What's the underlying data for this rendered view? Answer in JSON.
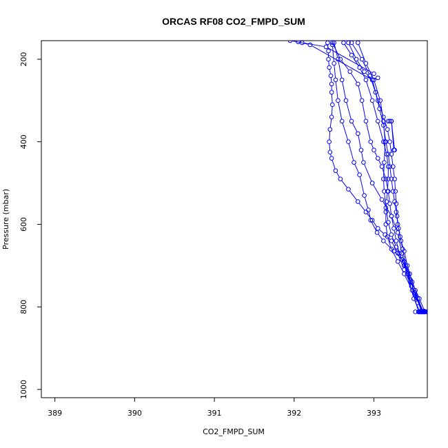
{
  "chart_data": {
    "type": "line",
    "title": "ORCAS RF08 CO2_FMPD_SUM",
    "xlabel": "CO2_FMPD_SUM",
    "ylabel": "Pressure (mbar)",
    "xlim": [
      388.83,
      393.67
    ],
    "ylim": [
      1020,
      155
    ],
    "y_inverted": true,
    "x_ticks": [
      389,
      390,
      391,
      392,
      393
    ],
    "y_ticks": [
      200,
      400,
      600,
      800,
      1000
    ],
    "grid": false,
    "series_color": "#0000ff",
    "series": [
      {
        "x": [
          393.63,
          393.55,
          393.47,
          393.38,
          393.3,
          393.22,
          393.14,
          393.05,
          392.98,
          392.9,
          392.8,
          392.68,
          392.58,
          392.52,
          392.47,
          392.45,
          392.44,
          392.45,
          392.47,
          392.48,
          392.47,
          392.47,
          392.46,
          392.44,
          392.43,
          392.43,
          392.42
        ],
        "y": [
          812,
          790,
          750,
          710,
          670,
          640,
          625,
          610,
          590,
          570,
          545,
          515,
          490,
          470,
          440,
          425,
          400,
          370,
          340,
          310,
          280,
          260,
          240,
          220,
          200,
          180,
          160
        ]
      },
      {
        "x": [
          393.6,
          393.52,
          393.45,
          393.38,
          393.25,
          393.12,
          393.04,
          392.96,
          392.93,
          392.88,
          392.82,
          392.75,
          392.68,
          392.6,
          392.55,
          392.52,
          392.5,
          392.48
        ],
        "y": [
          812,
          760,
          720,
          690,
          665,
          640,
          620,
          590,
          565,
          530,
          480,
          450,
          400,
          350,
          300,
          250,
          210,
          165
        ]
      },
      {
        "x": [
          393.58,
          393.5,
          393.42,
          393.35,
          393.3,
          393.22,
          393.1,
          392.98,
          392.87,
          392.84,
          392.8,
          392.72,
          392.65,
          392.6,
          392.55,
          392.5
        ],
        "y": [
          812,
          780,
          720,
          670,
          620,
          580,
          540,
          500,
          450,
          420,
          380,
          350,
          300,
          250,
          200,
          160
        ]
      },
      {
        "x": [
          393.62,
          393.55,
          393.46,
          393.38,
          393.32,
          393.28,
          393.25,
          393.22,
          393.2,
          393.18,
          393.15,
          393.1,
          393.05,
          393.0,
          392.96,
          392.9,
          392.85,
          392.8,
          392.7,
          392.58,
          392.48
        ],
        "y": [
          812,
          780,
          740,
          700,
          670,
          640,
          610,
          580,
          550,
          520,
          490,
          460,
          440,
          420,
          400,
          350,
          300,
          260,
          230,
          200,
          160
        ]
      },
      {
        "x": [
          393.64,
          393.57,
          393.48,
          393.42,
          393.38,
          393.34,
          393.31,
          393.29,
          393.28,
          393.27,
          393.26,
          393.24,
          393.22,
          393.2,
          393.17,
          393.12,
          393.05,
          392.98,
          392.88,
          392.78,
          392.68
        ],
        "y": [
          812,
          780,
          740,
          700,
          665,
          640,
          610,
          580,
          550,
          520,
          490,
          460,
          430,
          400,
          370,
          340,
          300,
          250,
          230,
          200,
          160
        ]
      },
      {
        "x": [
          393.61,
          393.53,
          393.46,
          393.4,
          393.36,
          393.33,
          393.3,
          393.28,
          393.26,
          393.24,
          393.22,
          393.2,
          393.18,
          393.15,
          393.12,
          393.07,
          393.02,
          392.95,
          392.85,
          392.72
        ],
        "y": [
          812,
          775,
          735,
          700,
          660,
          630,
          600,
          570,
          545,
          520,
          490,
          460,
          430,
          400,
          360,
          320,
          280,
          240,
          200,
          160
        ]
      },
      {
        "x": [
          393.56,
          393.48,
          393.38,
          393.3,
          393.22,
          393.17,
          393.15,
          393.15,
          393.16,
          393.17,
          393.18,
          393.18,
          393.16,
          393.12,
          393.05,
          392.98,
          392.9,
          392.82,
          392.72,
          392.62
        ],
        "y": [
          812,
          760,
          720,
          690,
          660,
          630,
          600,
          570,
          545,
          520,
          490,
          460,
          430,
          400,
          350,
          300,
          250,
          220,
          190,
          160
        ]
      },
      {
        "x": [
          393.6,
          393.51,
          393.43,
          393.35,
          393.28,
          393.22,
          393.18,
          393.15,
          393.13,
          393.12,
          393.13,
          393.14,
          393.12,
          393.08,
          393.0,
          392.9,
          392.8
        ],
        "y": [
          812,
          765,
          720,
          685,
          655,
          625,
          595,
          560,
          520,
          490,
          450,
          400,
          350,
          300,
          250,
          210,
          160
        ]
      },
      {
        "x": [
          392.95,
          393.0,
          392.4,
          392.1,
          391.95
        ],
        "y": [
          240,
          235,
          170,
          160,
          155
        ]
      },
      {
        "x": [
          393.05,
          392.98,
          392.2,
          392.05
        ],
        "y": [
          245,
          250,
          165,
          158
        ]
      },
      {
        "x": [
          393.2,
          393.22,
          393.26,
          393.25,
          393.22,
          393.18
        ],
        "y": [
          350,
          350,
          420,
          420,
          350,
          350
        ]
      },
      {
        "x": [
          393.56,
          393.57,
          393.58,
          393.59,
          393.6,
          393.61,
          393.62,
          393.63,
          393.64,
          393.65,
          393.66,
          393.67,
          393.63,
          393.58,
          393.52
        ],
        "y": [
          812,
          812,
          812,
          812,
          812,
          812,
          812,
          812,
          812,
          812,
          812,
          812,
          810,
          811,
          812
        ]
      }
    ]
  }
}
